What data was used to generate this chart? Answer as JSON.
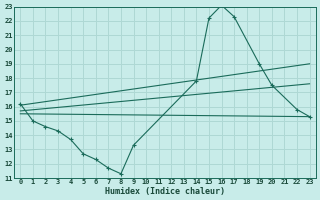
{
  "title": "",
  "xlabel": "Humidex (Indice chaleur)",
  "bg_color": "#c8ece9",
  "grid_color": "#aed8d4",
  "line_color": "#1a6b5a",
  "xlim": [
    -0.5,
    23.5
  ],
  "ylim": [
    11,
    23
  ],
  "yticks": [
    11,
    12,
    13,
    14,
    15,
    16,
    17,
    18,
    19,
    20,
    21,
    22,
    23
  ],
  "xticks": [
    0,
    1,
    2,
    3,
    4,
    5,
    6,
    7,
    8,
    9,
    10,
    11,
    12,
    13,
    14,
    15,
    16,
    17,
    18,
    19,
    20,
    21,
    22,
    23
  ],
  "main_x": [
    0,
    1,
    2,
    3,
    4,
    5,
    6,
    7,
    8,
    9,
    14,
    15,
    16,
    17,
    19,
    20,
    22,
    23
  ],
  "main_y": [
    16.2,
    15.0,
    14.6,
    14.3,
    13.7,
    12.7,
    12.3,
    11.7,
    11.3,
    13.3,
    17.8,
    22.2,
    23.1,
    22.3,
    19.0,
    17.5,
    15.8,
    15.3
  ],
  "line2_x": [
    0,
    23
  ],
  "line2_y": [
    15.5,
    15.3
  ],
  "line3_x": [
    0,
    23
  ],
  "line3_y": [
    15.7,
    17.6
  ],
  "line4_x": [
    0,
    23
  ],
  "line4_y": [
    16.1,
    19.0
  ]
}
